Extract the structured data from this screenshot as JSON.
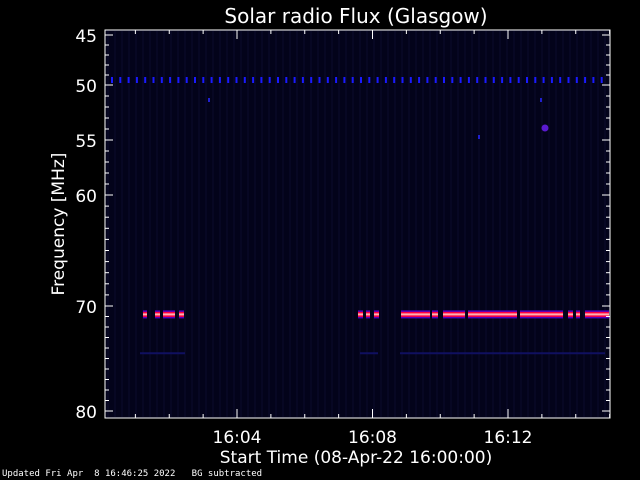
{
  "chart_data": {
    "type": "heatmap",
    "title": "Solar radio Flux (Glasgow)",
    "xlabel": "Start Time (08-Apr-22 16:00:00)",
    "ylabel": "Frequency [MHz]",
    "y_ticks": [
      45,
      50,
      55,
      60,
      70,
      80
    ],
    "ylim": [
      45,
      80
    ],
    "x_ticks": [
      "16:04",
      "16:08",
      "16:12"
    ],
    "x_tick_minutes": [
      4,
      8,
      12
    ],
    "xlim_minutes": [
      0,
      15
    ],
    "colors": {
      "background": "#000000",
      "plot_area": "#03031a",
      "low": "#1a1aff",
      "mid": "#ff0040",
      "high": "#ffb0b0",
      "axis": "#ffffff"
    },
    "bands": [
      {
        "name": "",
        "freq": 49.5,
        "level": "low"
      },
      {
        "name": "",
        "freq": 70.8,
        "level": "high"
      }
    ]
  },
  "footer": {
    "updated": "Updated Fri Apr  8 16:46:25 2022   BG subtracted"
  }
}
